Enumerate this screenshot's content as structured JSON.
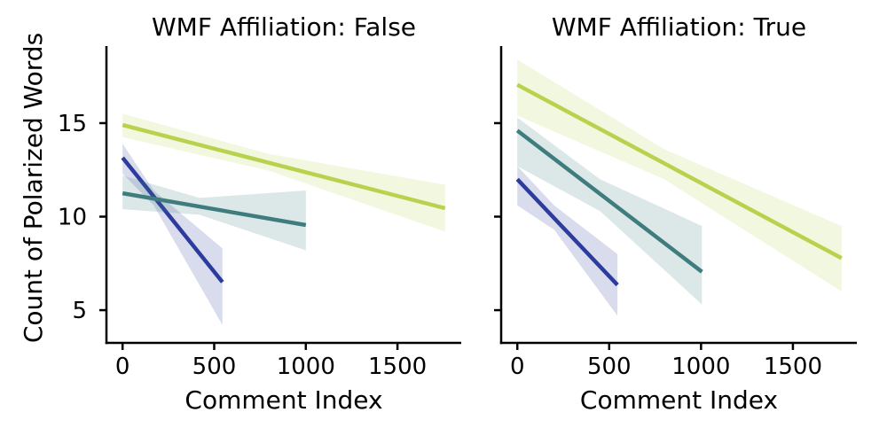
{
  "figure": {
    "background": "#ffffff",
    "text_color": "#000000",
    "axis_color": "#000000",
    "ylabel": "Count of Polarized Words",
    "xlabel": "Comment Index"
  },
  "chart_data": [
    {
      "type": "line",
      "title": "WMF Affiliation: False",
      "xlabel": "Comment Index",
      "ylabel": "Count of Polarized Words",
      "xlim": [
        -88,
        1848
      ],
      "ylim": [
        3.25,
        19.12
      ],
      "xticks": [
        0,
        500,
        1000,
        1500
      ],
      "yticks": [
        5,
        10,
        15
      ],
      "show_ytick_labels": true,
      "grid": false,
      "legend": "none",
      "ci_alpha": 0.18,
      "series": [
        {
          "name": "blue",
          "color": "#2c3c9c",
          "x": [
            0,
            545
          ],
          "y": [
            13.15,
            6.5
          ],
          "ci": {
            "x": [
              0,
              170,
              545
            ],
            "lower": [
              12.3,
              10.6,
              4.2
            ],
            "upper": [
              13.9,
              11.4,
              8.3
            ]
          }
        },
        {
          "name": "teal",
          "color": "#3e7c7e",
          "x": [
            0,
            1000
          ],
          "y": [
            11.25,
            9.55
          ],
          "ci": {
            "x": [
              0,
              420,
              1000
            ],
            "lower": [
              10.4,
              10.1,
              8.2
            ],
            "upper": [
              12.2,
              11.0,
              11.4
            ]
          }
        },
        {
          "name": "green",
          "color": "#b8d24e",
          "x": [
            0,
            1760
          ],
          "y": [
            14.9,
            10.45
          ],
          "ci": {
            "x": [
              0,
              800,
              1760
            ],
            "lower": [
              14.25,
              12.45,
              9.2
            ],
            "upper": [
              15.5,
              13.35,
              11.7
            ]
          }
        }
      ]
    },
    {
      "type": "line",
      "title": "WMF Affiliation: True",
      "xlabel": "Comment Index",
      "ylabel": "Count of Polarized Words",
      "xlim": [
        -88,
        1848
      ],
      "ylim": [
        3.25,
        19.12
      ],
      "xticks": [
        0,
        500,
        1000,
        1500
      ],
      "yticks": [
        5,
        10,
        15
      ],
      "show_ytick_labels": false,
      "grid": false,
      "legend": "none",
      "ci_alpha": 0.18,
      "series": [
        {
          "name": "blue",
          "color": "#2c3c9c",
          "x": [
            0,
            545
          ],
          "y": [
            12.0,
            6.35
          ],
          "ci": {
            "x": [
              0,
              200,
              545
            ],
            "lower": [
              10.6,
              9.3,
              4.7
            ],
            "upper": [
              12.7,
              10.6,
              8.0
            ]
          }
        },
        {
          "name": "teal",
          "color": "#3e7c7e",
          "x": [
            0,
            1005
          ],
          "y": [
            14.6,
            7.05
          ],
          "ci": {
            "x": [
              0,
              450,
              1005
            ],
            "lower": [
              12.7,
              10.3,
              5.3
            ],
            "upper": [
              15.3,
              12.0,
              9.5
            ]
          }
        },
        {
          "name": "green",
          "color": "#b8d24e",
          "x": [
            0,
            1765
          ],
          "y": [
            17.05,
            7.78
          ],
          "ci": {
            "x": [
              0,
              800,
              1765
            ],
            "lower": [
              15.4,
              12.0,
              6.0
            ],
            "upper": [
              18.4,
              13.6,
              9.5
            ]
          }
        }
      ]
    }
  ]
}
